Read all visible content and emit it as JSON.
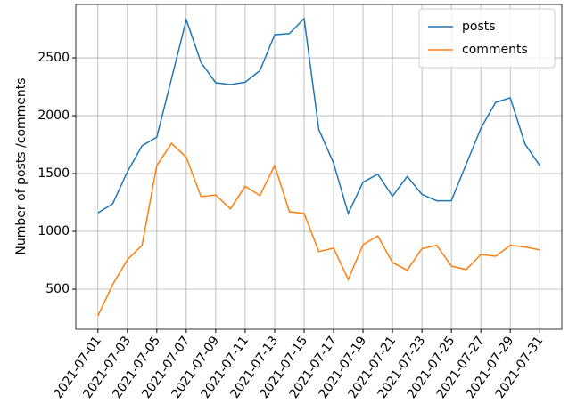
{
  "chart_data": {
    "type": "line",
    "ylabel": "Number of posts /comments",
    "categories": [
      "2021-07-01",
      null,
      "2021-07-03",
      null,
      "2021-07-05",
      null,
      "2021-07-07",
      null,
      "2021-07-09",
      null,
      "2021-07-11",
      null,
      "2021-07-13",
      null,
      "2021-07-15",
      null,
      "2021-07-17",
      null,
      "2021-07-19",
      null,
      "2021-07-21",
      null,
      "2021-07-23",
      null,
      "2021-07-25",
      null,
      "2021-07-27",
      null,
      "2021-07-29",
      null,
      "2021-07-31"
    ],
    "series": [
      {
        "name": "posts",
        "color": "#1f77b4",
        "values": [
          1160,
          1238,
          1515,
          1740,
          1815,
          2320,
          2830,
          2460,
          2285,
          2270,
          2290,
          2390,
          2700,
          2710,
          2840,
          1880,
          1590,
          1155,
          1425,
          1495,
          1305,
          1475,
          1320,
          1265,
          1265,
          1580,
          1890,
          2115,
          2155,
          1755,
          1570
        ]
      },
      {
        "name": "comments",
        "color": "#ff7f0e",
        "values": [
          270,
          540,
          755,
          880,
          1570,
          1760,
          1640,
          1300,
          1315,
          1195,
          1390,
          1310,
          1570,
          1170,
          1155,
          825,
          855,
          585,
          885,
          960,
          730,
          665,
          850,
          880,
          700,
          670,
          800,
          785,
          880,
          865,
          840
        ]
      }
    ],
    "ylim": [
      154,
      2962
    ],
    "yticks": [
      500,
      1000,
      1500,
      2000,
      2500
    ],
    "grid": true,
    "legend": "upper right"
  }
}
